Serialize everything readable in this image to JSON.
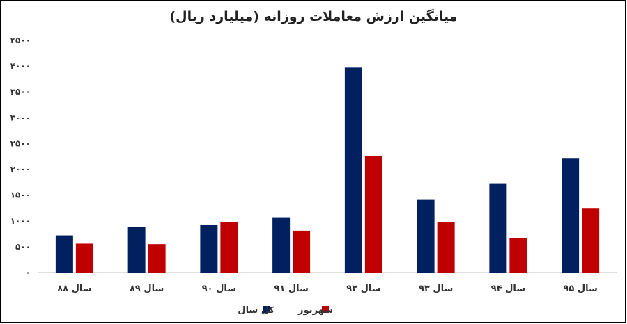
{
  "chart_data": {
    "type": "bar",
    "title": "میانگین ارزش معاملات روزانه (میلیارد ریال)",
    "categories": [
      "سال ۸۸",
      "سال ۸۹",
      "سال ۹۰",
      "سال ۹۱",
      "سال ۹۲",
      "سال ۹۳",
      "سال ۹۴",
      "سال ۹۵"
    ],
    "series": [
      {
        "name": "کل سال",
        "color": "#002060",
        "values": [
          720,
          880,
          930,
          1070,
          3970,
          1420,
          1730,
          2220
        ]
      },
      {
        "name": "شهریور",
        "color": "#c00000",
        "values": [
          560,
          550,
          970,
          810,
          2250,
          970,
          670,
          1250
        ]
      }
    ],
    "ylim": [
      0,
      4500
    ],
    "yticks": [
      {
        "value": 0,
        "label": "۰"
      },
      {
        "value": 500,
        "label": "۵۰۰"
      },
      {
        "value": 1000,
        "label": "۱۰۰۰"
      },
      {
        "value": 1500,
        "label": "۱۵۰۰"
      },
      {
        "value": 2000,
        "label": "۲۰۰۰"
      },
      {
        "value": 2500,
        "label": "۲۵۰۰"
      },
      {
        "value": 3000,
        "label": "۳۰۰۰"
      },
      {
        "value": 3500,
        "label": "۳۵۰۰"
      },
      {
        "value": 4000,
        "label": "۴۰۰۰"
      },
      {
        "value": 4500,
        "label": "۴۵۰۰"
      }
    ],
    "xlabel": "",
    "ylabel": "",
    "grid": false,
    "legend": "bottom-center"
  }
}
